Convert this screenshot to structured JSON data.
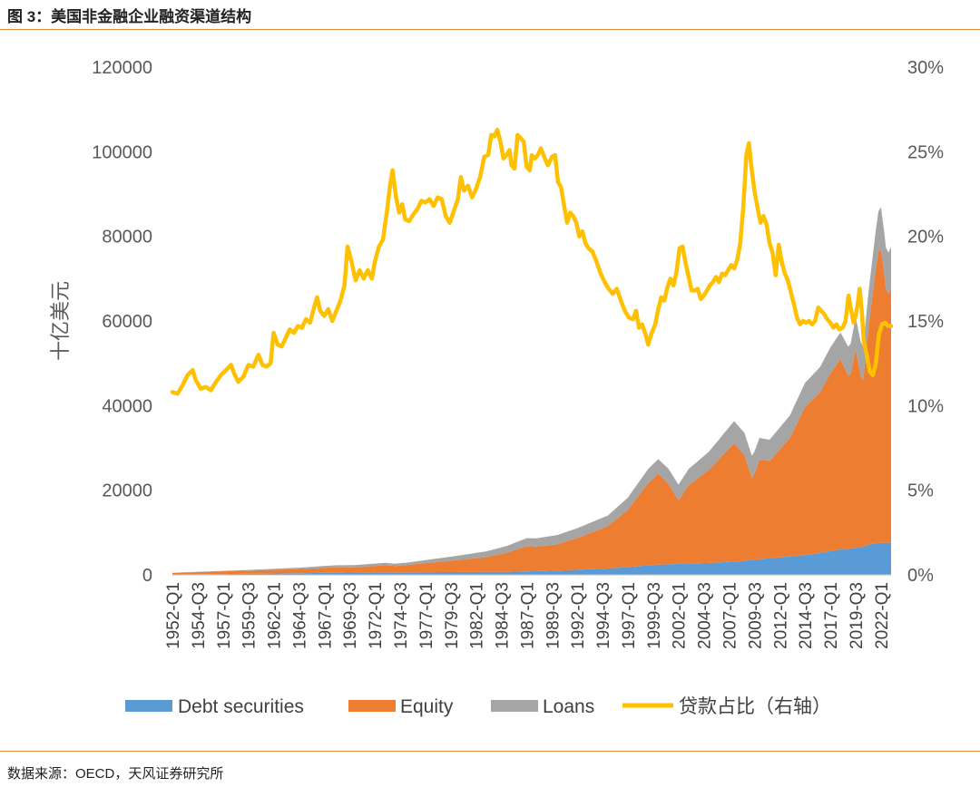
{
  "figure_title": "图 3：美国非金融企业融资渠道结构",
  "source": "数据来源：OECD，天风证券研究所",
  "colors": {
    "debt": "#5b9bd5",
    "equity": "#ed7d31",
    "loans": "#a5a5a5",
    "ratio": "#ffc000",
    "rule": "#e08a3a"
  },
  "chart_data": {
    "type": "area",
    "ylabel": "十亿美元",
    "ylim": [
      0,
      120000
    ],
    "y_ticks": [
      "0",
      "20000",
      "40000",
      "60000",
      "80000",
      "100000",
      "120000"
    ],
    "y2lim": [
      0,
      30
    ],
    "y2_ticks": [
      "0%",
      "5%",
      "10%",
      "15%",
      "20%",
      "25%",
      "30%"
    ],
    "x_range": [
      1952.0,
      2023.0
    ],
    "x_ticks": [
      "1952-Q1",
      "1954-Q3",
      "1957-Q1",
      "1959-Q3",
      "1962-Q1",
      "1964-Q3",
      "1967-Q1",
      "1969-Q3",
      "1972-Q1",
      "1974-Q3",
      "1977-Q1",
      "1979-Q3",
      "1982-Q1",
      "1984-Q3",
      "1987-Q1",
      "1989-Q3",
      "1992-Q1",
      "1994-Q3",
      "1997-Q1",
      "1999-Q3",
      "2002-Q1",
      "2004-Q3",
      "2007-Q1",
      "2009-Q3",
      "2012-Q1",
      "2014-Q3",
      "2017-Q1",
      "2019-Q3",
      "2022-Q1"
    ],
    "legend_position": "bottom",
    "series": [
      {
        "name": "Debt securities",
        "type": "area",
        "points": [
          [
            1952,
            100
          ],
          [
            1960,
            250
          ],
          [
            1970,
            550
          ],
          [
            1980,
            650
          ],
          [
            1985,
            700
          ],
          [
            1990,
            1000
          ],
          [
            1995,
            1500
          ],
          [
            2000,
            2400
          ],
          [
            2003,
            2700
          ],
          [
            2005,
            2800
          ],
          [
            2008,
            3200
          ],
          [
            2010,
            3700
          ],
          [
            2015,
            4800
          ],
          [
            2018,
            6000
          ],
          [
            2020,
            6500
          ],
          [
            2021,
            7300
          ],
          [
            2022,
            7600
          ],
          [
            2022.5,
            7500
          ],
          [
            2023,
            7700
          ]
        ]
      },
      {
        "name": "Equity",
        "type": "area",
        "points": [
          [
            1952,
            350
          ],
          [
            1960,
            800
          ],
          [
            1965,
            1000
          ],
          [
            1968,
            1300
          ],
          [
            1970,
            1200
          ],
          [
            1973,
            1700
          ],
          [
            1974,
            1500
          ],
          [
            1976,
            1900
          ],
          [
            1980,
            2800
          ],
          [
            1983,
            3500
          ],
          [
            1985,
            4500
          ],
          [
            1987,
            6000
          ],
          [
            1988,
            5800
          ],
          [
            1990,
            6200
          ],
          [
            1992,
            7500
          ],
          [
            1995,
            10000
          ],
          [
            1997,
            13500
          ],
          [
            1999,
            19500
          ],
          [
            2000,
            21500
          ],
          [
            2001,
            19000
          ],
          [
            2002,
            15000
          ],
          [
            2003,
            18500
          ],
          [
            2005,
            22000
          ],
          [
            2007.5,
            28000
          ],
          [
            2008.5,
            25000
          ],
          [
            2009.3,
            19000
          ],
          [
            2010,
            23500
          ],
          [
            2011,
            23000
          ],
          [
            2013,
            28000
          ],
          [
            2014.5,
            35000
          ],
          [
            2016,
            38000
          ],
          [
            2017,
            42000
          ],
          [
            2018,
            45000
          ],
          [
            2018.9,
            40000
          ],
          [
            2019.5,
            47000
          ],
          [
            2020.2,
            38000
          ],
          [
            2020.8,
            52000
          ],
          [
            2021.5,
            65000
          ],
          [
            2021.9,
            71000
          ],
          [
            2022.2,
            66000
          ],
          [
            2022.6,
            58000
          ],
          [
            2023,
            60000
          ]
        ]
      },
      {
        "name": "Loans",
        "type": "area",
        "points": [
          [
            1952,
            50
          ],
          [
            1960,
            150
          ],
          [
            1970,
            550
          ],
          [
            1975,
            550
          ],
          [
            1980,
            1000
          ],
          [
            1985,
            1600
          ],
          [
            1990,
            2200
          ],
          [
            1995,
            2500
          ],
          [
            1999,
            3300
          ],
          [
            2001,
            3600
          ],
          [
            2003,
            3800
          ],
          [
            2005,
            4300
          ],
          [
            2007.5,
            5200
          ],
          [
            2009,
            5300
          ],
          [
            2011,
            5000
          ],
          [
            2013,
            5300
          ],
          [
            2015,
            5800
          ],
          [
            2018,
            6300
          ],
          [
            2020,
            8000
          ],
          [
            2021,
            8500
          ],
          [
            2022,
            10000
          ],
          [
            2022.5,
            9800
          ],
          [
            2023,
            9800
          ]
        ]
      },
      {
        "name": "贷款占比（右轴）",
        "type": "line",
        "axis": "right",
        "points": [
          [
            1952,
            10.8
          ],
          [
            1952.5,
            10.7
          ],
          [
            1953,
            11.2
          ],
          [
            1953.5,
            11.8
          ],
          [
            1954,
            12.1
          ],
          [
            1954.3,
            11.5
          ],
          [
            1954.8,
            11.0
          ],
          [
            1955.3,
            11.1
          ],
          [
            1955.8,
            10.9
          ],
          [
            1956.3,
            11.4
          ],
          [
            1956.8,
            11.8
          ],
          [
            1957.3,
            12.1
          ],
          [
            1957.8,
            12.4
          ],
          [
            1958.1,
            11.9
          ],
          [
            1958.5,
            11.4
          ],
          [
            1959,
            11.7
          ],
          [
            1959.5,
            12.4
          ],
          [
            1960,
            12.3
          ],
          [
            1960.5,
            13.0
          ],
          [
            1960.9,
            12.4
          ],
          [
            1961.3,
            12.3
          ],
          [
            1961.7,
            12.5
          ],
          [
            1962,
            14.3
          ],
          [
            1962.4,
            13.6
          ],
          [
            1962.8,
            13.5
          ],
          [
            1963.2,
            14.0
          ],
          [
            1963.6,
            14.5
          ],
          [
            1964,
            14.3
          ],
          [
            1964.4,
            14.7
          ],
          [
            1964.8,
            14.6
          ],
          [
            1965.2,
            15.1
          ],
          [
            1965.6,
            14.9
          ],
          [
            1966,
            15.8
          ],
          [
            1966.3,
            16.4
          ],
          [
            1966.6,
            15.6
          ],
          [
            1967,
            15.3
          ],
          [
            1967.4,
            15.7
          ],
          [
            1967.8,
            15.0
          ],
          [
            1968.2,
            15.6
          ],
          [
            1968.6,
            16.2
          ],
          [
            1969,
            17.1
          ],
          [
            1969.3,
            19.4
          ],
          [
            1969.7,
            18.5
          ],
          [
            1970.1,
            17.4
          ],
          [
            1970.5,
            18.0
          ],
          [
            1970.9,
            17.5
          ],
          [
            1971.3,
            18.0
          ],
          [
            1971.7,
            17.5
          ],
          [
            1972,
            18.5
          ],
          [
            1972.4,
            19.4
          ],
          [
            1972.8,
            19.8
          ],
          [
            1973.2,
            21.5
          ],
          [
            1973.5,
            23.0
          ],
          [
            1973.75,
            23.9
          ],
          [
            1974.1,
            22.3
          ],
          [
            1974.4,
            21.4
          ],
          [
            1974.7,
            21.9
          ],
          [
            1975,
            21.0
          ],
          [
            1975.4,
            20.9
          ],
          [
            1975.8,
            21.3
          ],
          [
            1976.2,
            21.6
          ],
          [
            1976.6,
            22.1
          ],
          [
            1977,
            22.0
          ],
          [
            1977.4,
            22.2
          ],
          [
            1977.8,
            21.8
          ],
          [
            1978.2,
            22.3
          ],
          [
            1978.6,
            22.2
          ],
          [
            1979,
            21.2
          ],
          [
            1979.4,
            20.8
          ],
          [
            1979.8,
            21.5
          ],
          [
            1980.2,
            22.2
          ],
          [
            1980.5,
            23.5
          ],
          [
            1980.8,
            22.7
          ],
          [
            1981.2,
            23.0
          ],
          [
            1981.6,
            22.3
          ],
          [
            1982,
            22.8
          ],
          [
            1982.4,
            23.5
          ],
          [
            1982.8,
            24.7
          ],
          [
            1983.2,
            24.8
          ],
          [
            1983.5,
            26.0
          ],
          [
            1983.8,
            25.9
          ],
          [
            1984.1,
            26.3
          ],
          [
            1984.4,
            25.6
          ],
          [
            1984.7,
            24.6
          ],
          [
            1985,
            24.8
          ],
          [
            1985.3,
            25.1
          ],
          [
            1985.5,
            24.2
          ],
          [
            1985.8,
            24.0
          ],
          [
            1986.1,
            26.0
          ],
          [
            1986.4,
            25.8
          ],
          [
            1986.7,
            25.6
          ],
          [
            1987,
            24.1
          ],
          [
            1987.3,
            23.9
          ],
          [
            1987.5,
            24.8
          ],
          [
            1987.8,
            24.6
          ],
          [
            1988.1,
            24.8
          ],
          [
            1988.4,
            25.2
          ],
          [
            1988.8,
            24.6
          ],
          [
            1989.1,
            24.2
          ],
          [
            1989.5,
            24.7
          ],
          [
            1989.8,
            24.8
          ],
          [
            1990.1,
            23.2
          ],
          [
            1990.4,
            22.9
          ],
          [
            1990.7,
            21.8
          ],
          [
            1991,
            20.8
          ],
          [
            1991.3,
            21.4
          ],
          [
            1991.6,
            21.2
          ],
          [
            1991.9,
            20.8
          ],
          [
            1992.2,
            20.0
          ],
          [
            1992.5,
            20.3
          ],
          [
            1992.8,
            19.6
          ],
          [
            1993.1,
            19.3
          ],
          [
            1993.5,
            19.1
          ],
          [
            1993.9,
            18.5
          ],
          [
            1994.3,
            17.8
          ],
          [
            1994.7,
            17.3
          ],
          [
            1995.1,
            16.9
          ],
          [
            1995.5,
            16.6
          ],
          [
            1995.9,
            16.9
          ],
          [
            1996.3,
            16.2
          ],
          [
            1996.7,
            15.6
          ],
          [
            1997.1,
            15.2
          ],
          [
            1997.5,
            15.1
          ],
          [
            1997.8,
            15.6
          ],
          [
            1998.1,
            14.6
          ],
          [
            1998.4,
            14.8
          ],
          [
            1998.7,
            14.3
          ],
          [
            1999,
            13.6
          ],
          [
            1999.3,
            14.2
          ],
          [
            1999.7,
            14.8
          ],
          [
            2000,
            15.7
          ],
          [
            2000.3,
            16.4
          ],
          [
            2000.6,
            16.2
          ],
          [
            2000.9,
            17.0
          ],
          [
            2001.2,
            17.5
          ],
          [
            2001.5,
            17.1
          ],
          [
            2001.8,
            17.9
          ],
          [
            2002.1,
            19.3
          ],
          [
            2002.4,
            19.4
          ],
          [
            2002.7,
            18.4
          ],
          [
            2003,
            17.6
          ],
          [
            2003.3,
            16.8
          ],
          [
            2003.6,
            16.8
          ],
          [
            2003.9,
            16.9
          ],
          [
            2004.2,
            16.3
          ],
          [
            2004.5,
            16.5
          ],
          [
            2004.8,
            16.8
          ],
          [
            2005.1,
            17.1
          ],
          [
            2005.4,
            17.3
          ],
          [
            2005.7,
            17.6
          ],
          [
            2006,
            17.3
          ],
          [
            2006.3,
            17.8
          ],
          [
            2006.6,
            17.7
          ],
          [
            2006.9,
            18.0
          ],
          [
            2007.2,
            18.3
          ],
          [
            2007.5,
            18.1
          ],
          [
            2007.8,
            18.6
          ],
          [
            2008.1,
            19.6
          ],
          [
            2008.4,
            21.7
          ],
          [
            2008.7,
            24.8
          ],
          [
            2008.95,
            25.5
          ],
          [
            2009.2,
            24.1
          ],
          [
            2009.5,
            22.7
          ],
          [
            2009.8,
            21.7
          ],
          [
            2010.1,
            20.8
          ],
          [
            2010.4,
            21.2
          ],
          [
            2010.7,
            20.7
          ],
          [
            2011,
            19.6
          ],
          [
            2011.3,
            19.0
          ],
          [
            2011.6,
            17.7
          ],
          [
            2011.9,
            19.5
          ],
          [
            2012.2,
            18.5
          ],
          [
            2012.5,
            17.8
          ],
          [
            2012.8,
            17.4
          ],
          [
            2013.1,
            16.7
          ],
          [
            2013.4,
            16.0
          ],
          [
            2013.7,
            15.2
          ],
          [
            2014,
            14.8
          ],
          [
            2014.3,
            15.0
          ],
          [
            2014.6,
            14.9
          ],
          [
            2014.9,
            15.0
          ],
          [
            2015.2,
            14.8
          ],
          [
            2015.5,
            15.0
          ],
          [
            2015.8,
            15.8
          ],
          [
            2016.1,
            15.6
          ],
          [
            2016.4,
            15.4
          ],
          [
            2016.7,
            15.1
          ],
          [
            2017,
            14.9
          ],
          [
            2017.3,
            14.6
          ],
          [
            2017.6,
            14.8
          ],
          [
            2017.9,
            14.5
          ],
          [
            2018.2,
            14.6
          ],
          [
            2018.5,
            15.0
          ],
          [
            2018.8,
            16.5
          ],
          [
            2019,
            15.8
          ],
          [
            2019.3,
            14.9
          ],
          [
            2019.5,
            15.3
          ],
          [
            2019.7,
            16.0
          ],
          [
            2019.9,
            16.9
          ],
          [
            2020.1,
            15.6
          ],
          [
            2020.3,
            13.8
          ],
          [
            2020.6,
            13.0
          ],
          [
            2020.9,
            12.0
          ],
          [
            2021.2,
            11.8
          ],
          [
            2021.5,
            12.5
          ],
          [
            2021.8,
            14.2
          ],
          [
            2022.1,
            14.8
          ],
          [
            2022.4,
            14.9
          ],
          [
            2022.7,
            14.7
          ],
          [
            2023,
            14.7
          ]
        ]
      }
    ]
  }
}
